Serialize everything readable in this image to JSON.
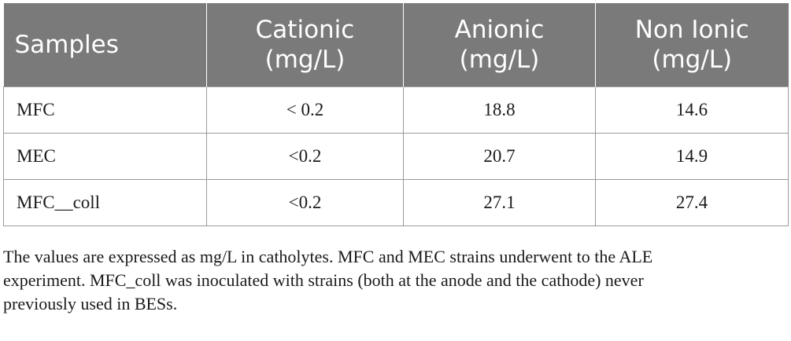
{
  "table": {
    "headers": [
      {
        "line1": "Samples",
        "line2": ""
      },
      {
        "line1": "Cationic",
        "line2": "(mg/L)"
      },
      {
        "line1": "Anionic",
        "line2": "(mg/L)"
      },
      {
        "line1": "Non Ionic",
        "line2": "(mg/L)"
      }
    ],
    "rows": [
      [
        "MFC",
        "< 0.2",
        "18.8",
        "14.6"
      ],
      [
        "MEC",
        "<0.2",
        "20.7",
        "14.9"
      ],
      [
        "MFC__coll",
        "<0.2",
        "27.1",
        "27.4"
      ]
    ]
  },
  "footnote": {
    "line1": "The values are expressed as mg/L in catholytes. MFC and MEC strains underwent to the ALE",
    "line2": "experiment. MFC_coll was inoculated with strains (both at the anode and the cathode) never",
    "line3": "previously used in BESs."
  }
}
